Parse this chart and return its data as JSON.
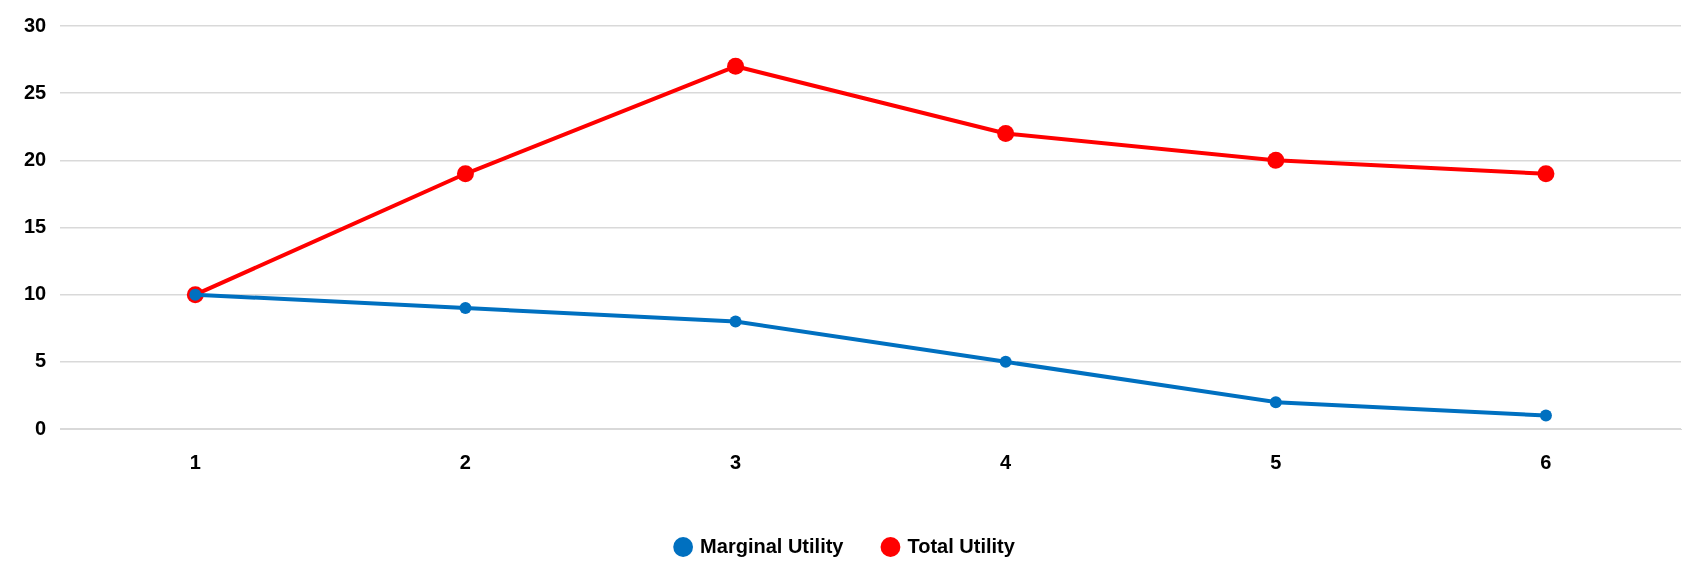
{
  "chart_data": {
    "type": "line",
    "categories": [
      "1",
      "2",
      "3",
      "4",
      "5",
      "6"
    ],
    "series": [
      {
        "name": "Total Utility",
        "color": "#ff0000",
        "values": [
          10,
          19,
          27,
          22,
          20,
          19
        ]
      },
      {
        "name": "Marginal Utility",
        "color": "#0070c0",
        "values": [
          10,
          9,
          8,
          5,
          2,
          1
        ]
      }
    ],
    "ylim": [
      0,
      30
    ],
    "yticks": [
      0,
      5,
      10,
      15,
      20,
      25,
      30
    ],
    "grid": "y",
    "legend": "bottom",
    "marker": "circle",
    "line_style": "solid"
  }
}
